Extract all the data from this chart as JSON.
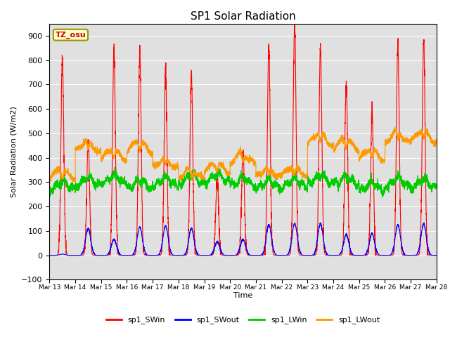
{
  "title": "SP1 Solar Radiation",
  "ylabel": "Solar Radiation (W/m2)",
  "xlabel": "Time",
  "ylim": [
    -100,
    950
  ],
  "yticks": [
    -100,
    0,
    100,
    200,
    300,
    400,
    500,
    600,
    700,
    800,
    900
  ],
  "bg_color": "#e0e0e0",
  "annotation_text": "TZ_osu",
  "annotation_box_color": "#ffffcc",
  "annotation_text_color": "#cc0000",
  "annotation_border_color": "#999900",
  "line_colors": {
    "sp1_SWin": "#ff0000",
    "sp1_SWout": "#0000ff",
    "sp1_LWin": "#00cc00",
    "sp1_LWout": "#ff9900"
  },
  "x_tick_labels": [
    "Mar 13",
    "Mar 14",
    "Mar 15",
    "Mar 16",
    "Mar 17",
    "Mar 18",
    "Mar 19",
    "Mar 20",
    "Mar 21",
    "Mar 22",
    "Mar 23",
    "Mar 24",
    "Mar 25",
    "Mar 26",
    "Mar 27",
    "Mar 28"
  ],
  "num_days": 15,
  "points_per_day": 288,
  "figsize": [
    6.4,
    4.8
  ],
  "dpi": 100
}
